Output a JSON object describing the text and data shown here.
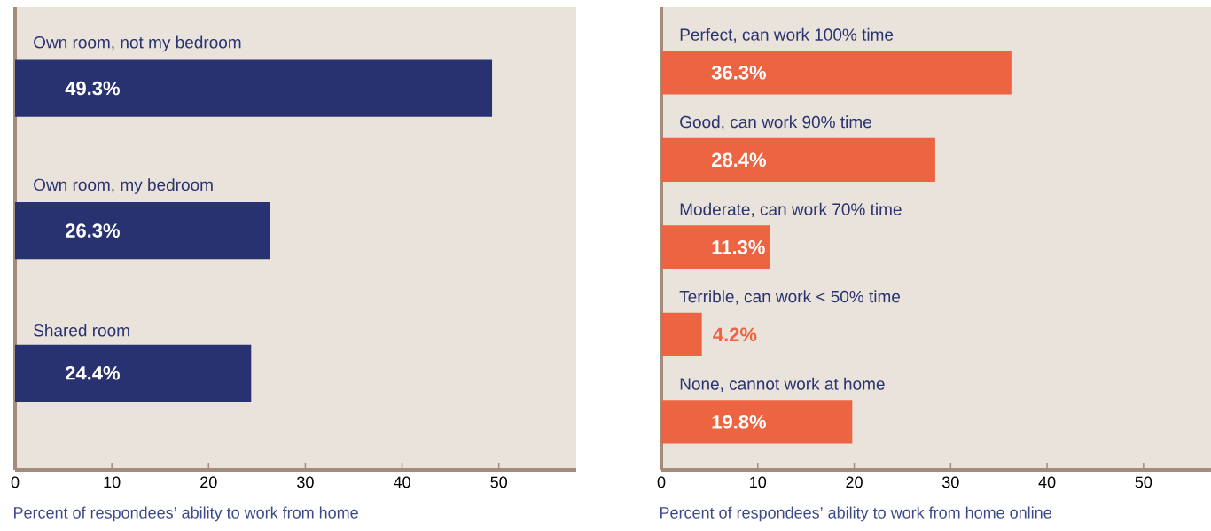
{
  "chart_data": [
    {
      "type": "bar",
      "orientation": "horizontal",
      "xlabel": "Percent of respondees’ ability to work from home",
      "categories": [
        "Own room, not my bedroom",
        "Own room, my bedroom",
        "Shared room"
      ],
      "values": [
        49.3,
        26.3,
        24.4
      ],
      "value_labels": [
        "49.3%",
        "26.3%",
        "24.4%"
      ],
      "color": "#283270",
      "xlim": [
        0,
        58
      ],
      "xticks": [
        0,
        10,
        20,
        30,
        40,
        50
      ]
    },
    {
      "type": "bar",
      "orientation": "horizontal",
      "xlabel": "Percent of respondees’ ability to work from home online",
      "categories": [
        "Perfect, can work 100% time",
        "Good, can work 90% time",
        "Moderate, can work 70% time",
        "Terrible, can work < 50% time",
        "None, cannot work at home"
      ],
      "values": [
        36.3,
        28.4,
        11.3,
        4.2,
        19.8
      ],
      "value_labels": [
        "36.3%",
        "28.4%",
        "11.3%",
        "4.2%",
        "19.8%"
      ],
      "color": "#ec6442",
      "xlim": [
        0,
        57
      ],
      "xticks": [
        0,
        10,
        20,
        30,
        40,
        50
      ]
    }
  ]
}
